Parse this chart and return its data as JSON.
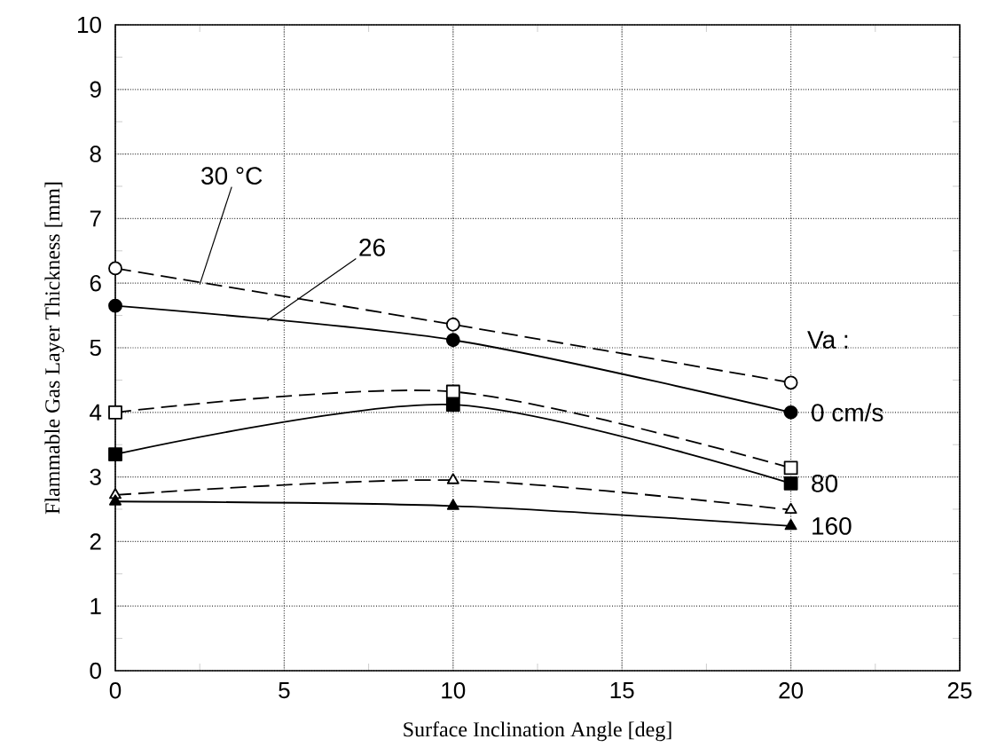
{
  "chart_data": {
    "type": "line",
    "xlabel": "Surface Inclination Angle [deg]",
    "ylabel": "Flammable Gas Layer Thickness [mm]",
    "xlim": [
      0,
      25
    ],
    "xticks": [
      0,
      5,
      10,
      15,
      20,
      25
    ],
    "ylim": [
      0,
      10
    ],
    "yticks": [
      0,
      1,
      2,
      3,
      4,
      5,
      6,
      7,
      8,
      9,
      10
    ],
    "grid": true,
    "series": [
      {
        "color": "#000000",
        "x": [
          0,
          10,
          20
        ],
        "values": [
          6.23,
          5.36,
          4.46
        ],
        "marker": "circle",
        "line_style": "dashed"
      },
      {
        "color": "#000000",
        "x": [
          0,
          10,
          20
        ],
        "values": [
          5.65,
          5.12,
          4.0
        ],
        "marker": "circle",
        "line_style": "solid"
      },
      {
        "color": "#000000",
        "x": [
          0,
          10,
          20
        ],
        "values": [
          4.0,
          4.32,
          3.14
        ],
        "marker": "square",
        "line_style": "dashed"
      },
      {
        "color": "#000000",
        "x": [
          0,
          10,
          20
        ],
        "values": [
          3.35,
          4.12,
          2.9
        ],
        "marker": "square",
        "line_style": "solid"
      },
      {
        "color": "#000000",
        "x": [
          0,
          10,
          20
        ],
        "values": [
          2.72,
          2.95,
          2.49
        ],
        "marker": "triangle",
        "line_style": "dashed"
      },
      {
        "color": "#000000",
        "x": [
          0,
          10,
          20
        ],
        "values": [
          2.62,
          2.55,
          2.24
        ],
        "marker": "triangle",
        "line_style": "solid"
      }
    ],
    "annotations": [
      {
        "text": "30 °C",
        "x": 2.5,
        "y": 5.98
      },
      {
        "text": "26",
        "x": 4.5,
        "y": 5.42
      },
      {
        "text": "Va :",
        "x": 20,
        "y": 4.46
      },
      {
        "text": "0 cm/s",
        "x": 20,
        "y": 4.0
      },
      {
        "text": "80",
        "x": 20,
        "y": 2.9
      },
      {
        "text": "160",
        "x": 20,
        "y": 2.24
      }
    ]
  }
}
